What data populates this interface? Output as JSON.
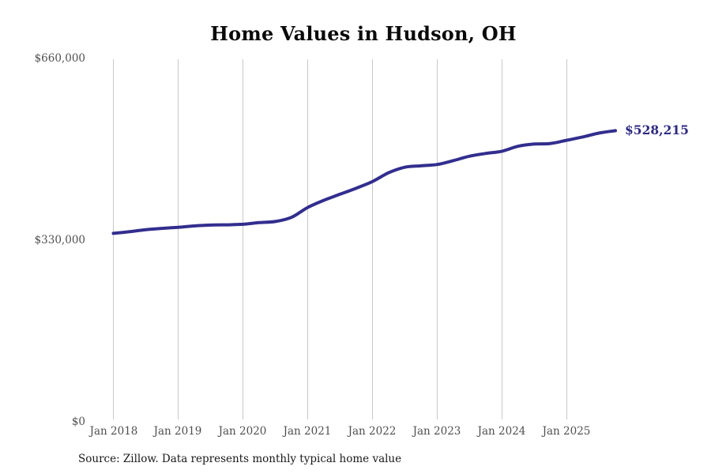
{
  "title": "Home Values in Hudson, OH",
  "footer": {
    "source": "Source: Zillow. Data represents monthly typical home value"
  },
  "chart_data": {
    "type": "line",
    "title": "Home Values in Hudson, OH",
    "series_name": "Monthly typical home value",
    "end_label": "$528,215",
    "end_value": 528215,
    "ylim": [
      0,
      660000
    ],
    "grid": "vertical-only",
    "legend": "none",
    "y_ticks": [
      {
        "label": "$0",
        "value": 0
      },
      {
        "label": "$330,000",
        "value": 330000
      },
      {
        "label": "$660,000",
        "value": 660000
      }
    ],
    "x_ticks": [
      "Jan 2018",
      "Jan 2019",
      "Jan 2020",
      "Jan 2021",
      "Jan 2022",
      "Jan 2023",
      "Jan 2024",
      "Jan 2025"
    ],
    "points": [
      {
        "date": "Jan 2018",
        "value": 342000
      },
      {
        "date": "Apr 2018",
        "value": 345000
      },
      {
        "date": "Jul 2018",
        "value": 348500
      },
      {
        "date": "Oct 2018",
        "value": 351000
      },
      {
        "date": "Jan 2019",
        "value": 353000
      },
      {
        "date": "Apr 2019",
        "value": 355500
      },
      {
        "date": "Jul 2019",
        "value": 357000
      },
      {
        "date": "Oct 2019",
        "value": 357500
      },
      {
        "date": "Jan 2020",
        "value": 358500
      },
      {
        "date": "Apr 2020",
        "value": 361500
      },
      {
        "date": "Jul 2020",
        "value": 363500
      },
      {
        "date": "Oct 2020",
        "value": 371000
      },
      {
        "date": "Jan 2021",
        "value": 389000
      },
      {
        "date": "Apr 2021",
        "value": 402000
      },
      {
        "date": "Jul 2021",
        "value": 413000
      },
      {
        "date": "Oct 2021",
        "value": 424000
      },
      {
        "date": "Jan 2022",
        "value": 436000
      },
      {
        "date": "Apr 2022",
        "value": 452000
      },
      {
        "date": "Jul 2022",
        "value": 462000
      },
      {
        "date": "Oct 2022",
        "value": 464500
      },
      {
        "date": "Jan 2023",
        "value": 467000
      },
      {
        "date": "Apr 2023",
        "value": 474000
      },
      {
        "date": "Jul 2023",
        "value": 482000
      },
      {
        "date": "Oct 2023",
        "value": 487000
      },
      {
        "date": "Jan 2024",
        "value": 491000
      },
      {
        "date": "Apr 2024",
        "value": 500000
      },
      {
        "date": "Jul 2024",
        "value": 504000
      },
      {
        "date": "Oct 2024",
        "value": 505000
      },
      {
        "date": "Jan 2025",
        "value": 511000
      },
      {
        "date": "Apr 2025",
        "value": 517000
      },
      {
        "date": "Jul 2025",
        "value": 524000
      },
      {
        "date": "Oct 2025",
        "value": 528215
      }
    ],
    "colors": {
      "line": "#322e8e",
      "end_label": "#2c2a80",
      "grid": "#c8c8c8",
      "tick_text": "#4f4f4f",
      "title_text": "#0a0a0a",
      "source_text": "#191919"
    }
  }
}
